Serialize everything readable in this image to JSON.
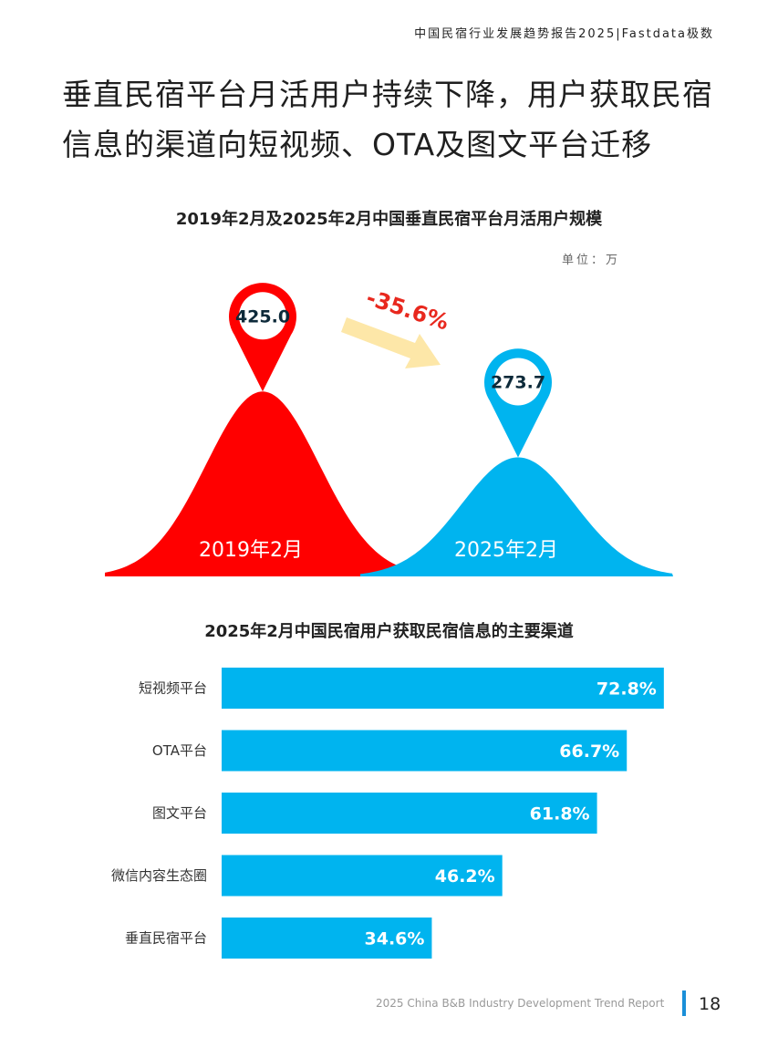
{
  "header": {
    "report_title": "中国民宿行业发展趋势报告2025|Fastdata极数"
  },
  "headline": "垂直民宿平台月活用户持续下降，用户获取民宿信息的渠道向短视频、OTA及图文平台迁移",
  "chart_data": [
    {
      "type": "area",
      "title": "2019年2月及2025年2月中国垂直民宿平台月活用户规模",
      "unit": "单位：万",
      "categories": [
        "2019年2月",
        "2025年2月"
      ],
      "values": [
        425.0,
        273.7
      ],
      "value_labels": [
        "425.0",
        "273.7"
      ],
      "change_label": "-35.6%",
      "colors": [
        "#ff0000",
        "#00b4ef"
      ],
      "change_color": "#e8281e",
      "arrow_color": "#fde7a8"
    },
    {
      "type": "bar",
      "orientation": "horizontal",
      "title": "2025年2月中国民宿用户获取民宿信息的主要渠道",
      "categories": [
        "短视频平台",
        "OTA平台",
        "图文平台",
        "微信内容生态圈",
        "垂直民宿平台"
      ],
      "values": [
        72.8,
        66.7,
        61.8,
        46.2,
        34.6
      ],
      "value_labels": [
        "72.8%",
        "66.7%",
        "61.8%",
        "46.2%",
        "34.6%"
      ],
      "bar_color": "#00b4ef"
    }
  ],
  "footer": {
    "report_en": "2025 China B&B Industry Development Trend Report",
    "page_number": "18"
  }
}
